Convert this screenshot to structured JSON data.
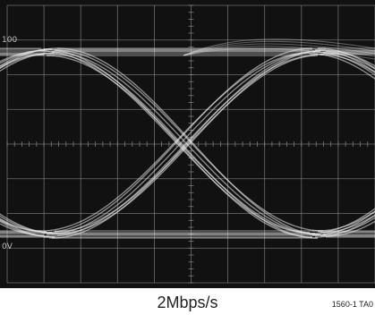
{
  "screen": {
    "background": "#111111",
    "grid_color": "#8c8c8c",
    "trace_color": "#eeeeee",
    "marker_top": "100",
    "marker_bottom": "0V",
    "grid": {
      "divisions_x": 10,
      "divisions_y": 8
    }
  },
  "caption": "2Mbps/s",
  "figure_id": "1560-1 TA0"
}
